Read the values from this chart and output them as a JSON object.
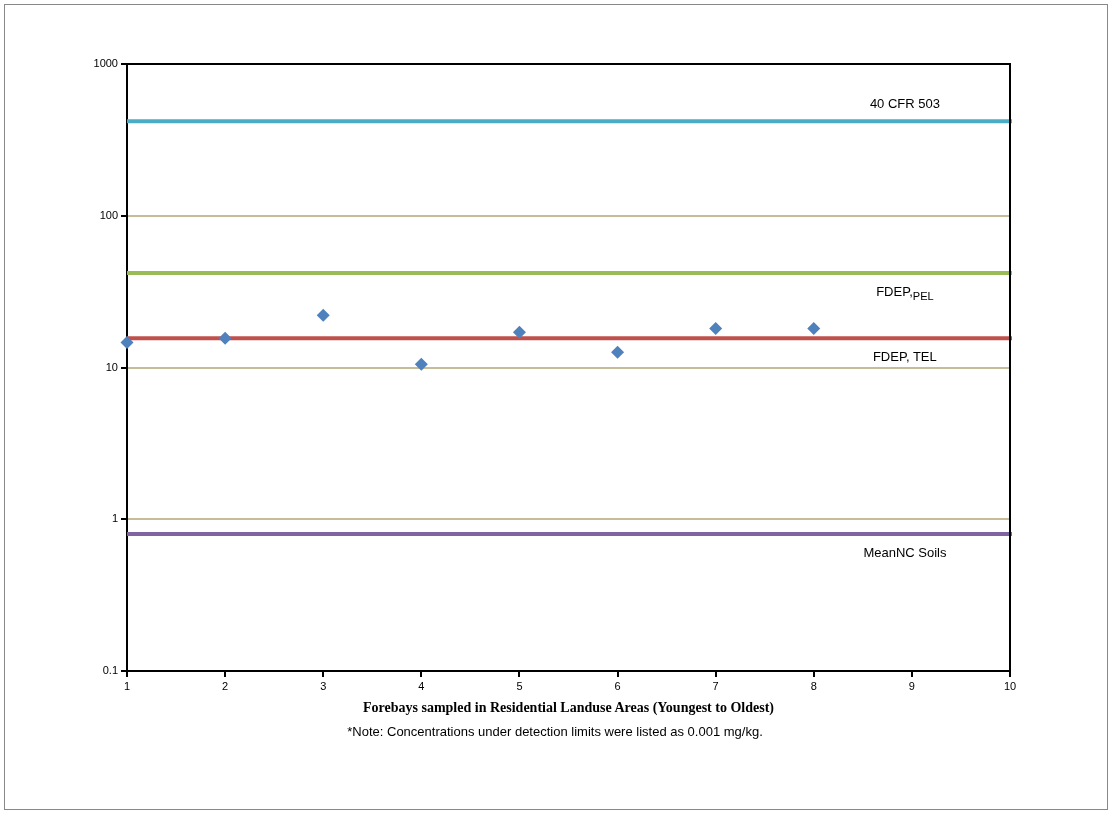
{
  "chart_data": {
    "type": "scatter",
    "xlabel": "Forebays sampled in Residential Landuse Areas (Youngest to Oldest)",
    "annotations": [
      "*Note: Concentrations under detection limits were listed as 0.001 mg/kg."
    ],
    "x": [
      1,
      2,
      3,
      4,
      5,
      6,
      7,
      8
    ],
    "series": [
      {
        "color": "#4f81bd",
        "values": [
          14.6,
          15.6,
          22.1,
          10.5,
          17.1,
          12.6,
          18.1,
          18.1
        ]
      }
    ],
    "marker": "diamond",
    "log": "y",
    "xlim": [
      1,
      10
    ],
    "xticks": [
      1,
      2,
      3,
      4,
      5,
      6,
      7,
      8,
      9,
      10
    ],
    "ylim": [
      0.1,
      1000
    ],
    "yticks": [
      0.1,
      1,
      10,
      100,
      1000
    ],
    "grid": "y",
    "ref_lines": [
      {
        "axis": "y",
        "value": 420,
        "label": "40 CFR 503",
        "color": "#4bacc6"
      },
      {
        "axis": "y",
        "value": 42,
        "label": "FDEP,$_{PEL}$",
        "color": "#9bbb59"
      },
      {
        "axis": "y",
        "value": 15.6,
        "label": "FDEP, TEL",
        "color": "#c0504d"
      },
      {
        "axis": "y",
        "value": 0.8,
        "label": "MeanNC Soils",
        "color": "#8064a2"
      }
    ]
  }
}
